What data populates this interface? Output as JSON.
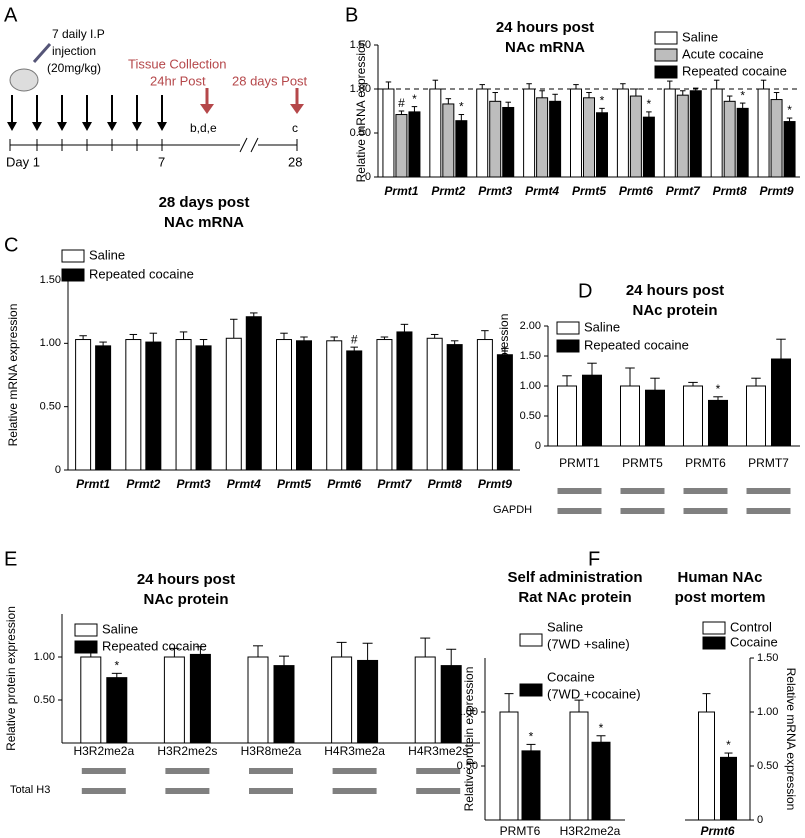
{
  "panel_labels": [
    "A",
    "B",
    "C",
    "D",
    "E",
    "F"
  ],
  "timeline": {
    "injection": [
      "7 daily I.P",
      "injection",
      "(20mg/kg)"
    ],
    "collection": "Tissue Collection",
    "post_24": "24hr Post",
    "post_28": "28 days Post",
    "panels_24": "b,d,e",
    "panels_28": "c",
    "day_start": "Day 1",
    "day_7": "7",
    "day_28": "28"
  },
  "chart_data": [
    {
      "type": "bar",
      "title": [
        "24 hours post",
        "NAc mRNA"
      ],
      "ylabel": "Relative mRNA expression",
      "categories": [
        "Prmt1",
        "Prmt2",
        "Prmt3",
        "Prmt4",
        "Prmt5",
        "Prmt6",
        "Prmt7",
        "Prmt8",
        "Prmt9"
      ],
      "italic_categories": true,
      "ylim": [
        0,
        1.5
      ],
      "yticks": [
        0,
        {
          "value": 0.5,
          "label": "0.50"
        },
        {
          "value": 1,
          "label": "1.00"
        },
        {
          "value": 1.5,
          "label": "1.50"
        }
      ],
      "reference_line": 1,
      "series": [
        {
          "name": "Saline",
          "color": "#ffffff",
          "values": [
            1,
            1,
            1,
            1,
            1,
            1,
            1,
            1,
            1
          ],
          "errors": [
            0.08,
            0.1,
            0.05,
            0.06,
            0.05,
            0.06,
            0.09,
            0.1,
            0.1
          ],
          "annotations": [
            null,
            null,
            null,
            null,
            null,
            null,
            null,
            null,
            null
          ]
        },
        {
          "name": "Acute cocaine",
          "color": "#bdbdbd",
          "values": [
            0.71,
            0.83,
            0.86,
            0.9,
            0.9,
            0.92,
            0.93,
            0.86,
            0.88
          ],
          "errors": [
            0.04,
            0.06,
            0.1,
            0.08,
            0.06,
            0.08,
            0.05,
            0.06,
            0.08
          ],
          "annotations": [
            "#",
            null,
            null,
            null,
            null,
            null,
            null,
            null,
            null
          ]
        },
        {
          "name": "Repeated cocaine",
          "color": "#000000",
          "values": [
            0.74,
            0.64,
            0.79,
            0.86,
            0.73,
            0.68,
            0.98,
            0.78,
            0.63
          ],
          "errors": [
            0.06,
            0.07,
            0.06,
            0.08,
            0.05,
            0.06,
            0.03,
            0.06,
            0.04
          ],
          "annotations": [
            "*",
            "*",
            null,
            null,
            "*",
            "*",
            null,
            "*",
            "*"
          ]
        }
      ]
    },
    {
      "type": "bar",
      "title": [
        "28 days post",
        "NAc mRNA"
      ],
      "ylabel": "Relative mRNA expression",
      "categories": [
        "Prmt1",
        "Prmt2",
        "Prmt3",
        "Prmt4",
        "Prmt5",
        "Prmt6",
        "Prmt7",
        "Prmt8",
        "Prmt9"
      ],
      "italic_categories": true,
      "ylim": [
        0,
        1.5
      ],
      "yticks": [
        0,
        {
          "value": 0.5,
          "label": "0.50"
        },
        {
          "value": 1,
          "label": "1.00"
        },
        {
          "value": 1.5,
          "label": "1.50"
        }
      ],
      "series": [
        {
          "name": "Saline",
          "color": "#ffffff",
          "values": [
            1.03,
            1.03,
            1.03,
            1.04,
            1.03,
            1.02,
            1.03,
            1.04,
            1.03
          ],
          "errors": [
            0.03,
            0.04,
            0.06,
            0.15,
            0.05,
            0.03,
            0.02,
            0.03,
            0.07
          ],
          "annotations": [
            null,
            null,
            null,
            null,
            null,
            null,
            null,
            null,
            null
          ]
        },
        {
          "name": "Repeated cocaine",
          "color": "#000000",
          "values": [
            0.98,
            1.01,
            0.98,
            1.21,
            1.02,
            0.94,
            1.09,
            0.99,
            0.91
          ],
          "errors": [
            0.03,
            0.07,
            0.05,
            0.03,
            0.03,
            0.03,
            0.06,
            0.03,
            0.05
          ],
          "annotations": [
            null,
            null,
            null,
            null,
            null,
            "#",
            null,
            null,
            null
          ]
        }
      ]
    },
    {
      "type": "bar",
      "title": [
        "24 hours post",
        "NAc protein"
      ],
      "ylabel": "Relative protein expression",
      "categories": [
        "PRMT1",
        "PRMT5",
        "PRMT6",
        "PRMT7"
      ],
      "blot_label": "GAPDH",
      "ylim": [
        0,
        2
      ],
      "yticks": [
        0,
        {
          "value": 0.5,
          "label": "0.50"
        },
        {
          "value": 1,
          "label": "1.00"
        },
        {
          "value": 1.5,
          "label": "1.50"
        },
        {
          "value": 2,
          "label": "2.00"
        }
      ],
      "series": [
        {
          "name": "Saline",
          "color": "#ffffff",
          "values": [
            1,
            1,
            1,
            1
          ],
          "errors": [
            0.17,
            0.3,
            0.06,
            0.13
          ],
          "annotations": [
            null,
            null,
            null,
            null
          ]
        },
        {
          "name": "Repeated cocaine",
          "color": "#000000",
          "values": [
            1.18,
            0.93,
            0.76,
            1.45
          ],
          "errors": [
            0.2,
            0.2,
            0.06,
            0.33
          ],
          "annotations": [
            null,
            null,
            "*",
            null
          ]
        }
      ]
    },
    {
      "type": "bar",
      "title": [
        "24 hours post",
        "NAc protein"
      ],
      "ylabel": "Relative protein expression",
      "categories": [
        "H3R2me2a",
        "H3R2me2s",
        "H3R8me2a",
        "H4R3me2a",
        "H4R3me2s"
      ],
      "blot_label": "Total H3",
      "ylim": [
        0,
        1.5
      ],
      "yticks": [
        {
          "value": 0.5,
          "label": "0.50"
        },
        {
          "value": 1,
          "label": "1.00"
        }
      ],
      "series": [
        {
          "name": "Saline",
          "color": "#ffffff",
          "values": [
            1,
            1,
            1,
            1,
            1
          ],
          "errors": [
            0.1,
            0.1,
            0.13,
            0.17,
            0.22
          ],
          "annotations": [
            null,
            null,
            null,
            null,
            null
          ]
        },
        {
          "name": "Repeated cocaine",
          "color": "#000000",
          "values": [
            0.76,
            1.03,
            0.9,
            0.96,
            0.9
          ],
          "errors": [
            0.05,
            0.09,
            0.11,
            0.2,
            0.19
          ],
          "annotations": [
            "*",
            null,
            null,
            null,
            null
          ]
        }
      ]
    },
    {
      "type": "bar",
      "title": [
        "Self administration",
        "Rat NAc protein"
      ],
      "ylabel": "Relative protein expression",
      "categories": [
        "PRMT6",
        "H3R2me2a"
      ],
      "ylim": [
        0,
        1.5
      ],
      "yticks": [
        {
          "value": 0.5,
          "label": "0.50"
        },
        {
          "value": 1,
          "label": "1.00"
        }
      ],
      "series": [
        {
          "name": [
            "Saline",
            "(7WD +saline)"
          ],
          "color": "#ffffff",
          "values": [
            1,
            1
          ],
          "errors": [
            0.17,
            0.11
          ],
          "annotations": [
            null,
            null
          ]
        },
        {
          "name": [
            "Cocaine",
            "(7WD +cocaine)"
          ],
          "color": "#000000",
          "values": [
            0.64,
            0.72
          ],
          "errors": [
            0.06,
            0.06
          ],
          "annotations": [
            "*",
            "*"
          ]
        }
      ]
    },
    {
      "type": "bar",
      "title": [
        "Human NAc",
        "post mortem"
      ],
      "ylabel": "Relative mRNA expression",
      "categories": [
        "Prmt6"
      ],
      "italic_categories": true,
      "yaxis_side": "right",
      "ylim": [
        0,
        1.5
      ],
      "yticks": [
        0,
        {
          "value": 0.5,
          "label": "0.50"
        },
        {
          "value": 1,
          "label": "1.00"
        },
        {
          "value": 1.5,
          "label": "1.50"
        }
      ],
      "series": [
        {
          "name": "Control",
          "color": "#ffffff",
          "values": [
            1
          ],
          "errors": [
            0.17
          ],
          "annotations": [
            null
          ]
        },
        {
          "name": "Cocaine",
          "color": "#000000",
          "values": [
            0.58
          ],
          "errors": [
            0.04
          ],
          "annotations": [
            "*"
          ]
        }
      ]
    }
  ]
}
